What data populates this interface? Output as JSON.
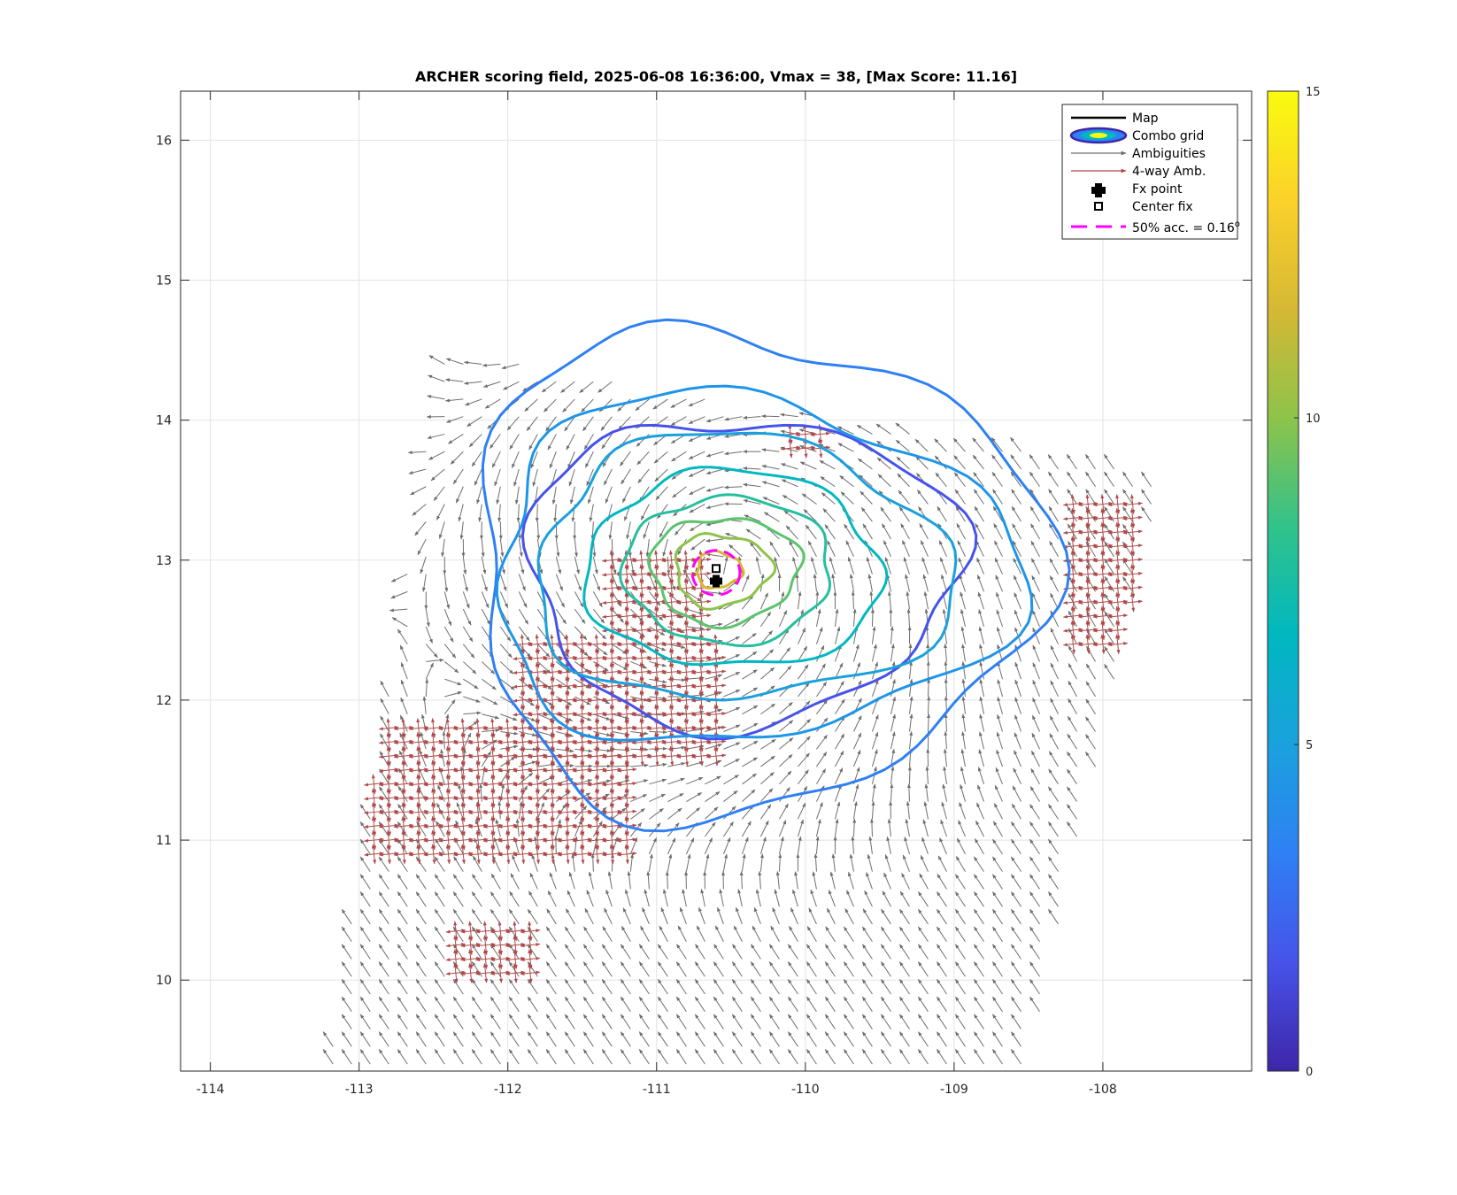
{
  "chart_data": {
    "type": "contour-vector-map",
    "title": "ARCHER scoring field, 2025-06-08 16:36:00, Vmax = 38, [Max Score: 11.16]",
    "xlim": [
      -114.2,
      -107.0
    ],
    "ylim": [
      9.35,
      16.35
    ],
    "xticks": [
      -114,
      -113,
      -112,
      -111,
      -110,
      -109,
      -108
    ],
    "yticks": [
      10,
      11,
      12,
      13,
      14,
      15,
      16
    ],
    "xtick_labels": [
      "-114",
      "-113",
      "-112",
      "-111",
      "-110",
      "-109",
      "-108"
    ],
    "ytick_labels": [
      "10",
      "11",
      "12",
      "13",
      "14",
      "15",
      "16"
    ],
    "grid": true,
    "colorbar": {
      "range": [
        0,
        15
      ],
      "ticks": [
        0,
        5,
        10,
        15
      ],
      "tick_labels": [
        "0",
        "5",
        "10",
        "15"
      ],
      "colormap": [
        "#3e26a8",
        "#4653ea",
        "#2f80f4",
        "#1aa1dd",
        "#00b8c0",
        "#32c28a",
        "#8ec34a",
        "#d6b834",
        "#fbd12a",
        "#f9fb0e"
      ]
    },
    "center": {
      "lon": -110.6,
      "lat": 12.93
    },
    "fx_point": {
      "lon": -110.6,
      "lat": 12.85
    },
    "center_fix": {
      "lon": -110.6,
      "lat": 12.94
    },
    "accuracy_radius_deg": 0.16,
    "contour_levels": [
      {
        "level": 1.5,
        "radius_x": 1.45,
        "radius_y": 1.1,
        "color": "#4653ea"
      },
      {
        "level": 4.0,
        "radius_x": 1.9,
        "radius_y": 1.75,
        "color": "#2f80f4"
      },
      {
        "level": 5.0,
        "radius_x": 1.75,
        "radius_y": 1.25,
        "color": "#1e95e8"
      },
      {
        "level": 6.0,
        "radius_x": 1.4,
        "radius_y": 0.95,
        "color": "#1aa1dd"
      },
      {
        "level": 7.0,
        "radius_x": 1.0,
        "radius_y": 0.7,
        "color": "#00b8c0"
      },
      {
        "level": 8.0,
        "radius_x": 0.7,
        "radius_y": 0.52,
        "color": "#25bfa0"
      },
      {
        "level": 9.0,
        "radius_x": 0.5,
        "radius_y": 0.38,
        "color": "#5ac46e"
      },
      {
        "level": 10.0,
        "radius_x": 0.32,
        "radius_y": 0.26,
        "color": "#8ec34a"
      },
      {
        "level": 11.0,
        "radius_x": 0.15,
        "radius_y": 0.13,
        "color": "#d6b834"
      }
    ],
    "swath_corners": [
      [
        -113.2,
        9.38
      ],
      [
        -112.45,
        14.5
      ],
      [
        -107.6,
        13.6
      ],
      [
        -108.5,
        9.38
      ]
    ],
    "ambiguity_band": {
      "rows": 8,
      "start_corner": [
        -112.9,
        11.6
      ],
      "direction": [
        1.0,
        0.6
      ]
    },
    "colors": {
      "ambiguity": "#707070",
      "four_way": "#b04a4a",
      "accuracy": "#ff00ff"
    }
  },
  "legend": {
    "position": "top-right",
    "items": [
      {
        "label": "Map"
      },
      {
        "label": "Combo grid"
      },
      {
        "label": "Ambiguities"
      },
      {
        "label": "4-way Amb."
      },
      {
        "label": "Fx point"
      },
      {
        "label": "Center fix"
      },
      {
        "label": "50% acc. = 0.16",
        "superscript": "o"
      }
    ]
  }
}
